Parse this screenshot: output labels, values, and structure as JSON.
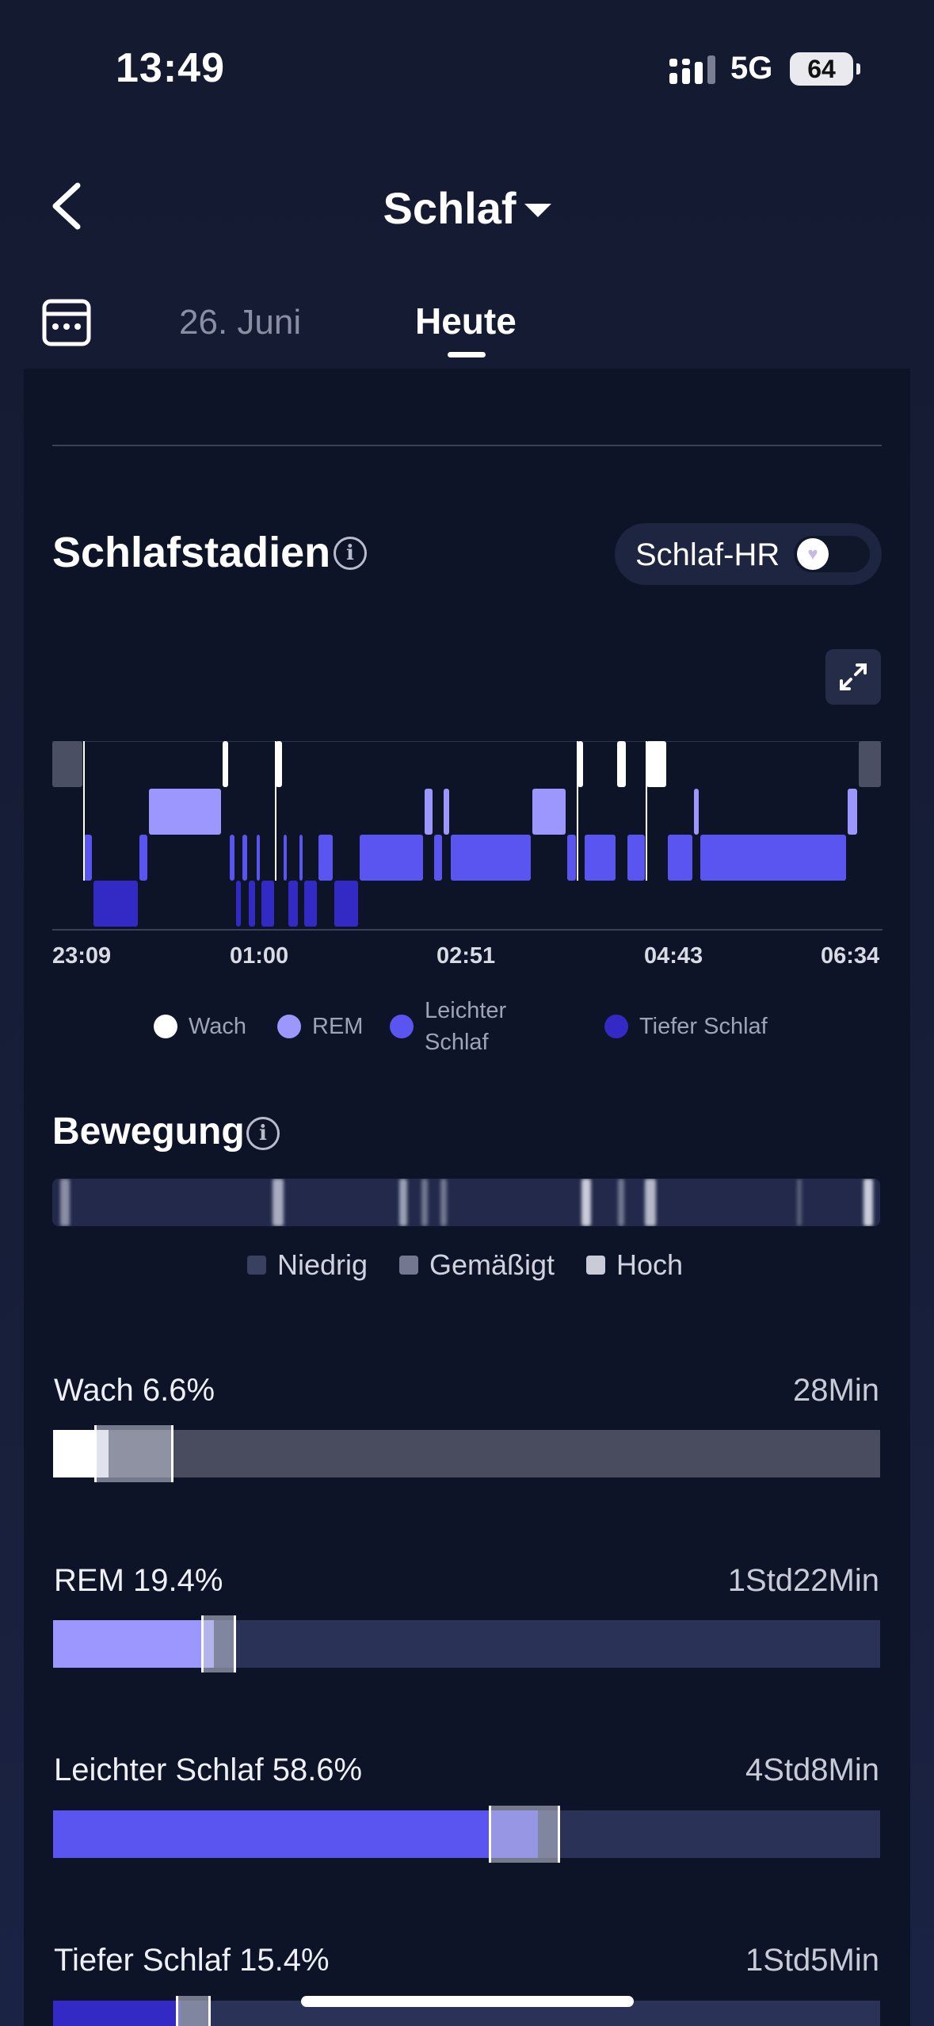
{
  "status_bar": {
    "time": "13:49",
    "network": "5G",
    "battery": "64"
  },
  "header": {
    "title": "Schlaf"
  },
  "tabs": {
    "date": "26. Juni",
    "today": "Heute"
  },
  "stages": {
    "title": "Schlafstadien",
    "hr_toggle_label": "Schlaf-HR",
    "hr_toggle_on": false,
    "x_labels": [
      "23:09",
      "01:00",
      "02:51",
      "04:43",
      "06:34"
    ],
    "legend": [
      {
        "label": "Wach",
        "color": "#ffffff"
      },
      {
        "label": "REM",
        "color": "#9c97ff"
      },
      {
        "label": "Leichter Schlaf",
        "color": "#5a54f0"
      },
      {
        "label": "Tiefer Schlaf",
        "color": "#3329c4"
      }
    ]
  },
  "movement": {
    "title": "Bewegung",
    "legend": [
      "Niedrig",
      "Gemäßigt",
      "Hoch"
    ]
  },
  "stats": [
    {
      "label": "Wach 6.6%",
      "value": "28Min",
      "color": "#ffffff",
      "track": "#484c5e",
      "percent": 6.6
    },
    {
      "label": "REM 19.4%",
      "value": "1Std22Min",
      "color": "#9c97ff",
      "track": "#2a3258",
      "percent": 19.4
    },
    {
      "label": "Leichter Schlaf 58.6%",
      "value": "4Std8Min",
      "color": "#5a54f0",
      "track": "#2a3258",
      "percent": 58.6
    },
    {
      "label": "Tiefer Schlaf 15.4%",
      "value": "1Std5Min",
      "color": "#3329c4",
      "track": "#2a3258",
      "percent": 15.4
    }
  ],
  "colors": {
    "background": "#141a30",
    "card": "#0e1428",
    "wach": "#ffffff",
    "rem": "#9c97ff",
    "light": "#5a54f0",
    "deep": "#3329c4"
  }
}
